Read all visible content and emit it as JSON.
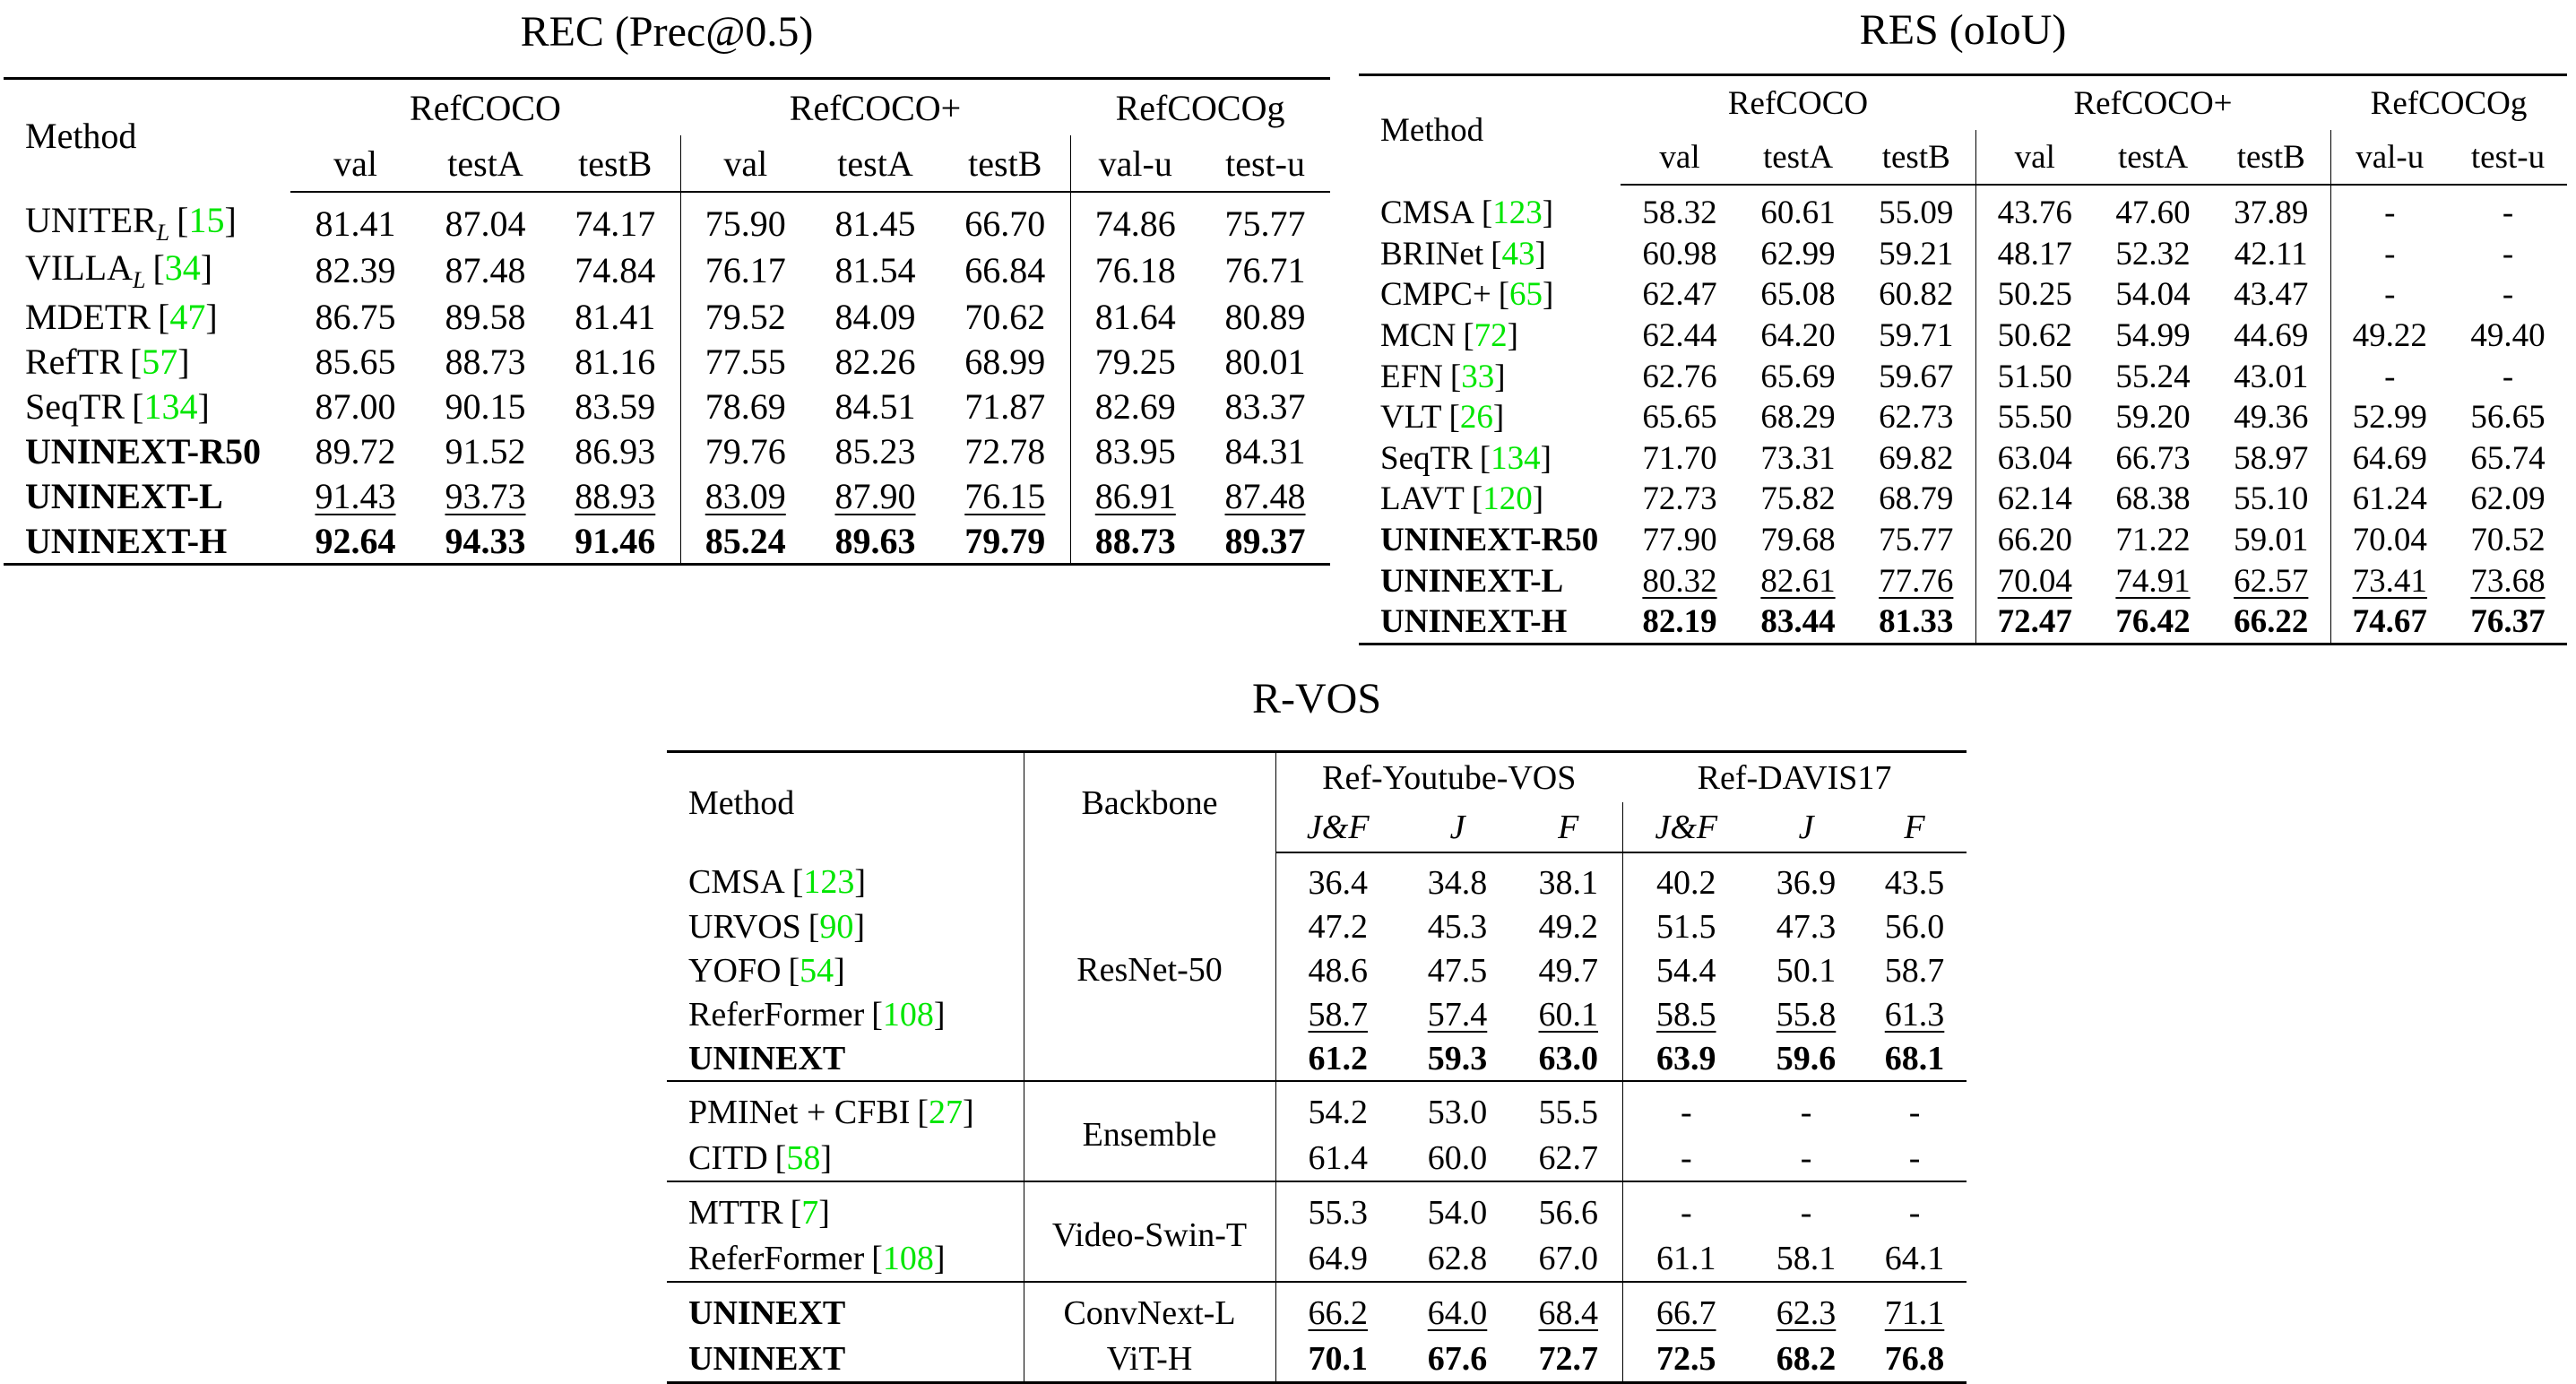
{
  "colors": {
    "citation": "#00e600",
    "text": "#000000"
  },
  "rec": {
    "title": "REC (Prec@0.5)",
    "method_header": "Method",
    "groups": [
      {
        "name": "RefCOCO",
        "cols": [
          "val",
          "testA",
          "testB"
        ]
      },
      {
        "name": "RefCOCO+",
        "cols": [
          "val",
          "testA",
          "testB"
        ]
      },
      {
        "name": "RefCOCOg",
        "cols": [
          "val-u",
          "test-u"
        ]
      }
    ],
    "rows": [
      {
        "method": "UNITER",
        "sub": "L",
        "ref": "15",
        "name_bold": false,
        "rank": "",
        "values": [
          "81.41",
          "87.04",
          "74.17",
          "75.90",
          "81.45",
          "66.70",
          "74.86",
          "75.77"
        ]
      },
      {
        "method": "VILLA",
        "sub": "L",
        "ref": "34",
        "name_bold": false,
        "rank": "",
        "values": [
          "82.39",
          "87.48",
          "74.84",
          "76.17",
          "81.54",
          "66.84",
          "76.18",
          "76.71"
        ]
      },
      {
        "method": "MDETR",
        "ref": "47",
        "name_bold": false,
        "rank": "",
        "values": [
          "86.75",
          "89.58",
          "81.41",
          "79.52",
          "84.09",
          "70.62",
          "81.64",
          "80.89"
        ]
      },
      {
        "method": "RefTR",
        "ref": "57",
        "name_bold": false,
        "rank": "",
        "values": [
          "85.65",
          "88.73",
          "81.16",
          "77.55",
          "82.26",
          "68.99",
          "79.25",
          "80.01"
        ]
      },
      {
        "method": "SeqTR",
        "ref": "134",
        "name_bold": false,
        "rank": "",
        "values": [
          "87.00",
          "90.15",
          "83.59",
          "78.69",
          "84.51",
          "71.87",
          "82.69",
          "83.37"
        ]
      },
      {
        "method": "UNINEXT-R50",
        "name_bold": true,
        "rank": "",
        "values": [
          "89.72",
          "91.52",
          "86.93",
          "79.76",
          "85.23",
          "72.78",
          "83.95",
          "84.31"
        ]
      },
      {
        "method": "UNINEXT-L",
        "name_bold": true,
        "rank": "second",
        "values": [
          "91.43",
          "93.73",
          "88.93",
          "83.09",
          "87.90",
          "76.15",
          "86.91",
          "87.48"
        ]
      },
      {
        "method": "UNINEXT-H",
        "name_bold": true,
        "rank": "best",
        "values": [
          "92.64",
          "94.33",
          "91.46",
          "85.24",
          "89.63",
          "79.79",
          "88.73",
          "89.37"
        ]
      }
    ]
  },
  "res": {
    "title": "RES (oIoU)",
    "method_header": "Method",
    "groups": [
      {
        "name": "RefCOCO",
        "cols": [
          "val",
          "testA",
          "testB"
        ]
      },
      {
        "name": "RefCOCO+",
        "cols": [
          "val",
          "testA",
          "testB"
        ]
      },
      {
        "name": "RefCOCOg",
        "cols": [
          "val-u",
          "test-u"
        ]
      }
    ],
    "rows": [
      {
        "method": "CMSA",
        "ref": "123",
        "name_bold": false,
        "rank": "",
        "values": [
          "58.32",
          "60.61",
          "55.09",
          "43.76",
          "47.60",
          "37.89",
          "-",
          "-"
        ]
      },
      {
        "method": "BRINet",
        "ref": "43",
        "name_bold": false,
        "rank": "",
        "values": [
          "60.98",
          "62.99",
          "59.21",
          "48.17",
          "52.32",
          "42.11",
          "-",
          "-"
        ]
      },
      {
        "method": "CMPC+",
        "ref": "65",
        "name_bold": false,
        "rank": "",
        "values": [
          "62.47",
          "65.08",
          "60.82",
          "50.25",
          "54.04",
          "43.47",
          "-",
          "-"
        ]
      },
      {
        "method": "MCN",
        "ref": "72",
        "name_bold": false,
        "rank": "",
        "values": [
          "62.44",
          "64.20",
          "59.71",
          "50.62",
          "54.99",
          "44.69",
          "49.22",
          "49.40"
        ]
      },
      {
        "method": "EFN",
        "ref": "33",
        "name_bold": false,
        "rank": "",
        "values": [
          "62.76",
          "65.69",
          "59.67",
          "51.50",
          "55.24",
          "43.01",
          "-",
          "-"
        ]
      },
      {
        "method": "VLT",
        "ref": "26",
        "name_bold": false,
        "rank": "",
        "values": [
          "65.65",
          "68.29",
          "62.73",
          "55.50",
          "59.20",
          "49.36",
          "52.99",
          "56.65"
        ]
      },
      {
        "method": "SeqTR",
        "ref": "134",
        "name_bold": false,
        "rank": "",
        "values": [
          "71.70",
          "73.31",
          "69.82",
          "63.04",
          "66.73",
          "58.97",
          "64.69",
          "65.74"
        ]
      },
      {
        "method": "LAVT",
        "ref": "120",
        "name_bold": false,
        "rank": "",
        "values": [
          "72.73",
          "75.82",
          "68.79",
          "62.14",
          "68.38",
          "55.10",
          "61.24",
          "62.09"
        ]
      },
      {
        "method": "UNINEXT-R50",
        "name_bold": true,
        "rank": "",
        "values": [
          "77.90",
          "79.68",
          "75.77",
          "66.20",
          "71.22",
          "59.01",
          "70.04",
          "70.52"
        ]
      },
      {
        "method": "UNINEXT-L",
        "name_bold": true,
        "rank": "second",
        "values": [
          "80.32",
          "82.61",
          "77.76",
          "70.04",
          "74.91",
          "62.57",
          "73.41",
          "73.68"
        ]
      },
      {
        "method": "UNINEXT-H",
        "name_bold": true,
        "rank": "best",
        "values": [
          "82.19",
          "83.44",
          "81.33",
          "72.47",
          "76.42",
          "66.22",
          "74.67",
          "76.37"
        ]
      }
    ]
  },
  "rvos": {
    "title": "R-VOS",
    "method_header": "Method",
    "backbone_header": "Backbone",
    "groups": [
      {
        "name": "Ref-Youtube-VOS",
        "cols": [
          "J&F",
          "J",
          "F"
        ]
      },
      {
        "name": "Ref-DAVIS17",
        "cols": [
          "J&F",
          "J",
          "F"
        ]
      }
    ],
    "backbone_groups": [
      {
        "backbone": "ResNet-50",
        "rows": [
          {
            "method": "CMSA",
            "ref": "123",
            "name_bold": false,
            "rank": "",
            "values": [
              "36.4",
              "34.8",
              "38.1",
              "40.2",
              "36.9",
              "43.5"
            ]
          },
          {
            "method": "URVOS",
            "ref": "90",
            "name_bold": false,
            "rank": "",
            "values": [
              "47.2",
              "45.3",
              "49.2",
              "51.5",
              "47.3",
              "56.0"
            ]
          },
          {
            "method": "YOFO",
            "ref": "54",
            "name_bold": false,
            "rank": "",
            "values": [
              "48.6",
              "47.5",
              "49.7",
              "54.4",
              "50.1",
              "58.7"
            ]
          },
          {
            "method": "ReferFormer",
            "ref": "108",
            "name_bold": false,
            "rank": "second",
            "values": [
              "58.7",
              "57.4",
              "60.1",
              "58.5",
              "55.8",
              "61.3"
            ]
          },
          {
            "method": "UNINEXT",
            "name_bold": true,
            "rank": "best",
            "values": [
              "61.2",
              "59.3",
              "63.0",
              "63.9",
              "59.6",
              "68.1"
            ]
          }
        ]
      },
      {
        "backbone": "Ensemble",
        "rows": [
          {
            "method": "PMINet + CFBI",
            "ref": "27",
            "name_bold": false,
            "rank": "",
            "values": [
              "54.2",
              "53.0",
              "55.5",
              "-",
              "-",
              "-"
            ]
          },
          {
            "method": "CITD",
            "ref": "58",
            "name_bold": false,
            "rank": "",
            "values": [
              "61.4",
              "60.0",
              "62.7",
              "-",
              "-",
              "-"
            ]
          }
        ]
      },
      {
        "backbone": "Video-Swin-T",
        "rows": [
          {
            "method": "MTTR",
            "ref": "7",
            "name_bold": false,
            "rank": "",
            "values": [
              "55.3",
              "54.0",
              "56.6",
              "-",
              "-",
              "-"
            ]
          },
          {
            "method": "ReferFormer",
            "ref": "108",
            "name_bold": false,
            "rank": "",
            "values": [
              "64.9",
              "62.8",
              "67.0",
              "61.1",
              "58.1",
              "64.1"
            ]
          }
        ]
      },
      {
        "backbone": "",
        "rows": [
          {
            "method": "UNINEXT",
            "backbone": "ConvNext-L",
            "name_bold": true,
            "rank": "second",
            "values": [
              "66.2",
              "64.0",
              "68.4",
              "66.7",
              "62.3",
              "71.1"
            ]
          },
          {
            "method": "UNINEXT",
            "backbone": "ViT-H",
            "name_bold": true,
            "rank": "best",
            "values": [
              "70.1",
              "67.6",
              "72.7",
              "72.5",
              "68.2",
              "76.8"
            ]
          }
        ]
      }
    ]
  }
}
